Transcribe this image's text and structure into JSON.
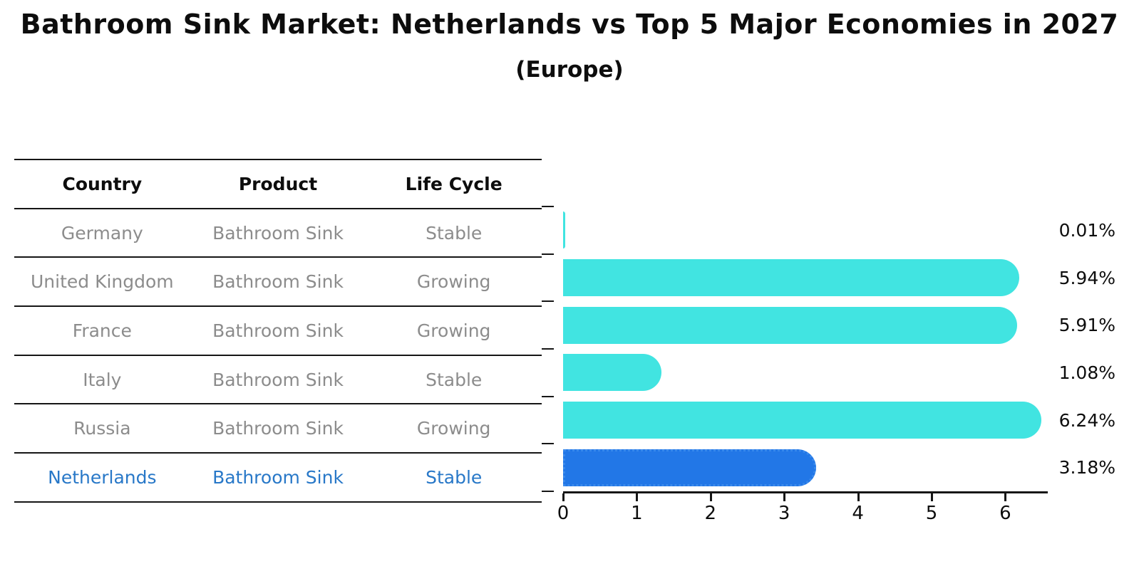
{
  "title": "Bathroom Sink Market: Netherlands vs Top 5 Major Economies in 2027",
  "subtitle": "(Europe)",
  "table": {
    "headers": [
      "Country",
      "Product",
      "Life Cycle"
    ],
    "rows": [
      {
        "country": "Germany",
        "product": "Bathroom Sink",
        "life_cycle": "Stable",
        "highlight": false
      },
      {
        "country": "United Kingdom",
        "product": "Bathroom Sink",
        "life_cycle": "Growing",
        "highlight": false
      },
      {
        "country": "France",
        "product": "Bathroom Sink",
        "life_cycle": "Growing",
        "highlight": false
      },
      {
        "country": "Italy",
        "product": "Bathroom Sink",
        "life_cycle": "Stable",
        "highlight": false
      },
      {
        "country": "Russia",
        "product": "Bathroom Sink",
        "life_cycle": "Growing",
        "highlight": false
      },
      {
        "country": "Netherlands",
        "product": "Bathroom Sink",
        "life_cycle": "Stable",
        "highlight": true
      }
    ]
  },
  "chart_data": {
    "type": "bar",
    "orientation": "horizontal",
    "title": "Bathroom Sink Market: Netherlands vs Top 5 Major Economies in 2027",
    "subtitle": "(Europe)",
    "categories": [
      "Germany",
      "United Kingdom",
      "France",
      "Italy",
      "Russia",
      "Netherlands"
    ],
    "values": [
      0.01,
      5.94,
      5.91,
      1.08,
      6.24,
      3.18
    ],
    "value_labels": [
      "0.01%",
      "5.94%",
      "5.91%",
      "1.08%",
      "6.24%",
      "3.18%"
    ],
    "xlabel": "",
    "ylabel": "",
    "xlim": [
      0,
      6.58
    ],
    "xticks": [
      0,
      1,
      2,
      3,
      4,
      5,
      6
    ],
    "grid": false,
    "legend": false,
    "highlight_index": 5,
    "colors": {
      "default_bar": "#41E4E1",
      "highlight_bar": "#2277E7",
      "highlight_border": "#3A8AEC",
      "highlight_text": "#2878C8",
      "muted_text": "#8C8C8C",
      "axis": "#161616"
    }
  }
}
